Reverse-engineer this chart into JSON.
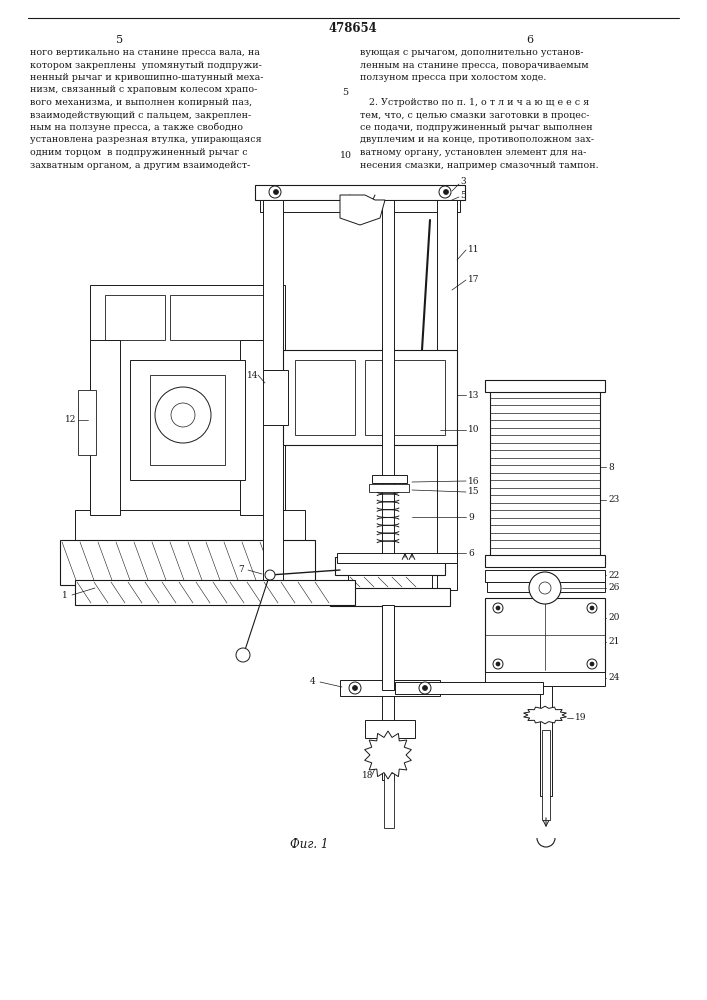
{
  "page_number": "478654",
  "col_left_num": "5",
  "col_right_num": "6",
  "col_left_text": [
    "ного вертикально на станине пресса вала, на",
    "котором закреплены  упомянутый подпружи-",
    "ненный рычаг и кривошипно-шатунный меха-",
    "низм, связанный с храповым колесом храпо-",
    "вого механизма, и выполнен копирный паз,",
    "взаимодействующий с пальцем, закреплен-",
    "ным на ползуне пресса, а также свободно",
    "установлена разрезная втулка, упирающаяся",
    "одним торцом  в подпружиненный рычаг с",
    "захватным органом, а другим взаимодейст-"
  ],
  "col_right_text": [
    "вующая с рычагом, дополнительно установ-",
    "ленным на станине пресса, поворачиваемым",
    "ползуном пресса при холостом ходе.",
    "",
    "   2. Устройство по п. 1, о т л и ч а ю щ е е с я",
    "тем, что, с целью смазки заготовки в процес-",
    "се подачи, подпружиненный рычаг выполнен",
    "двуплечим и на конце, противоположном зах-",
    "ватному органу, установлен элемент для на-",
    "несения смазки, например смазочный тампон."
  ],
  "num5": "5",
  "num10": "10",
  "fig_caption": "Фиг. 1",
  "bg_color": "#ffffff",
  "lc": "#1a1a1a",
  "tc": "#1a1a1a"
}
